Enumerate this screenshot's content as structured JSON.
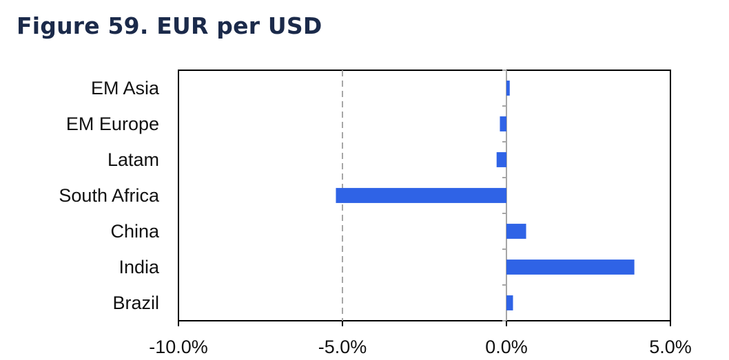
{
  "title": "Figure 59. EUR per USD",
  "chart_data": {
    "type": "bar",
    "orientation": "horizontal",
    "title": "Figure 59. EUR per USD",
    "categories": [
      "EM Asia",
      "EM Europe",
      "Latam",
      "South Africa",
      "China",
      "India",
      "Brazil"
    ],
    "values": [
      0.1,
      -0.2,
      -0.3,
      -5.2,
      0.6,
      3.9,
      0.2
    ],
    "xlim": [
      -10,
      5
    ],
    "x_ticks": [
      -10,
      -5,
      0,
      5
    ],
    "x_tick_labels": [
      "-10.0%",
      "-5.0%",
      "0.0%",
      "5.0%"
    ],
    "reference_line": -5,
    "bar_color": "#2f63e6",
    "grid": false
  }
}
